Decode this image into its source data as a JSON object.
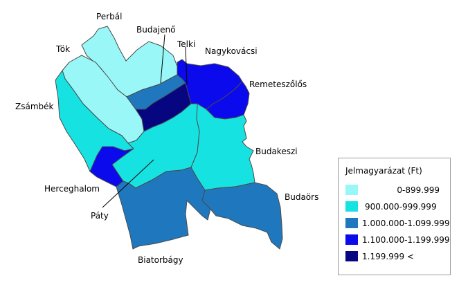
{
  "legend": {
    "title": "Jelmagyarázat (Ft)",
    "items": [
      {
        "label": "0-899.999",
        "color": "#99f7f7"
      },
      {
        "label": "900.000-999.999",
        "color": "#17e2e2"
      },
      {
        "label": "1.000.000-1.099.999",
        "color": "#1f78be"
      },
      {
        "label": "1.100.000-1.199.999",
        "color": "#0a0aec"
      },
      {
        "label": "1.199.999 <",
        "color": "#060680"
      }
    ]
  },
  "places": {
    "perbal": "Perbál",
    "tok": "Tök",
    "zsambek": "Zsámbék",
    "budajeno": "Budajenő",
    "telki": "Telki",
    "nagykovacsi": "Nagykovácsi",
    "remeteszolos": "Remeteszőlős",
    "budakeszi": "Budakeszi",
    "herceghalom": "Herceghalom",
    "paty": "Páty",
    "biatorbagy": "Biatorbágy",
    "budaors": "Budaörs"
  }
}
